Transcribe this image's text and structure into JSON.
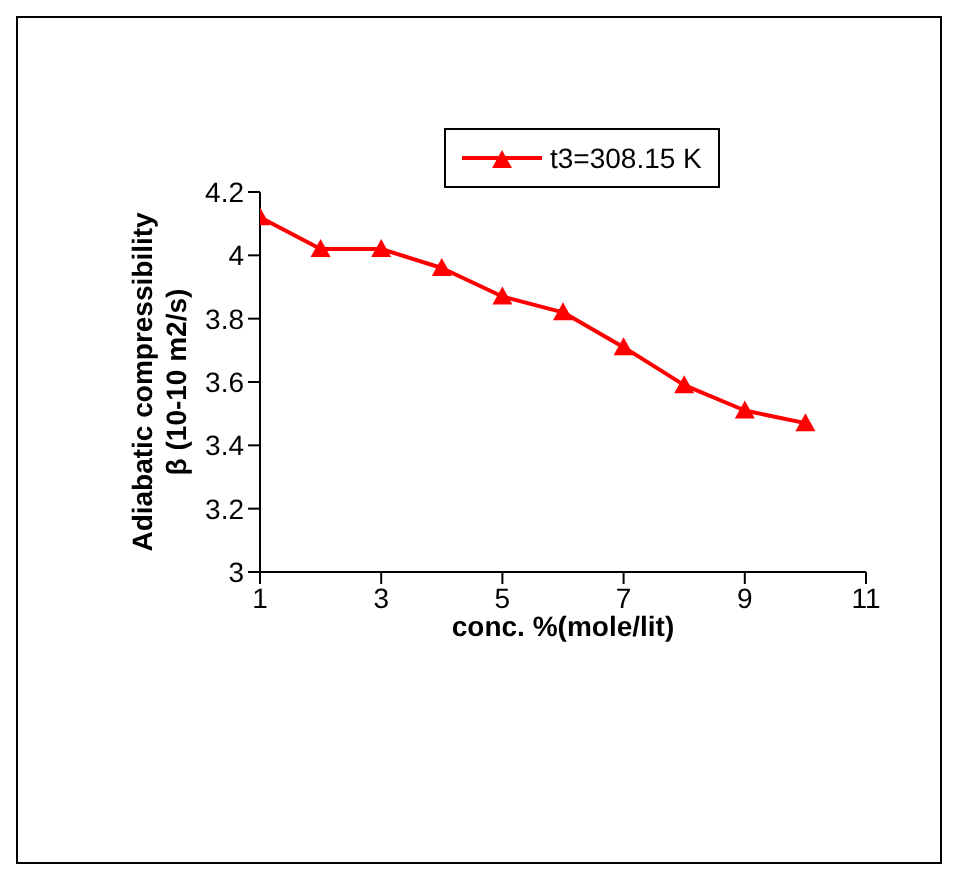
{
  "chart_data": {
    "type": "line",
    "xlabel": "conc. %(mole/lit)",
    "ylabel": "Adiabatic compressibility\nβ (10-10 m2/s)",
    "x": [
      1,
      2,
      3,
      4,
      5,
      6,
      7,
      8,
      9,
      10
    ],
    "series": [
      {
        "name": "t3=308.15 K",
        "color": "#ff0000",
        "values": [
          4.12,
          4.02,
          4.02,
          3.96,
          3.87,
          3.82,
          3.71,
          3.59,
          3.51,
          3.47
        ]
      }
    ],
    "xlim": [
      1,
      11
    ],
    "xticks": [
      1,
      3,
      5,
      7,
      9,
      11
    ],
    "ylim": [
      3,
      4.2
    ],
    "yticks": [
      3,
      3.2,
      3.4,
      3.6,
      3.8,
      4,
      4.2
    ],
    "grid": false,
    "legend": "top right",
    "marker": "triangle",
    "line_style": "solid"
  }
}
